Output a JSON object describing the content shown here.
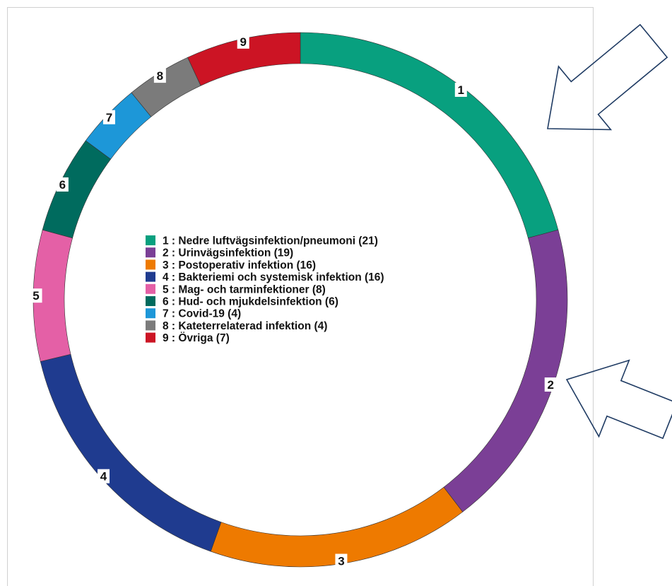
{
  "chart_data": {
    "type": "pie",
    "title": "",
    "donut": true,
    "start_angle_deg": 0,
    "direction": "clockwise",
    "slices": [
      {
        "label": "1",
        "legend": "1 : Nedre luftvägsinfektion/pneumoni (21)",
        "value": 21,
        "color": "#08a07f"
      },
      {
        "label": "2",
        "legend": "2 : Urinvägsinfektion (19)",
        "value": 19,
        "color": "#7b3f96"
      },
      {
        "label": "3",
        "legend": "3 : Postoperativ infektion (16)",
        "value": 16,
        "color": "#ee7a00"
      },
      {
        "label": "4",
        "legend": "4 : Bakteriemi och systemisk infektion (16)",
        "value": 16,
        "color": "#1f3b8f"
      },
      {
        "label": "5",
        "legend": "5 : Mag- och tarminfektioner (8)",
        "value": 8,
        "color": "#e460a6"
      },
      {
        "label": "6",
        "legend": "6 : Hud- och mjukdelsinfektion (6)",
        "value": 6,
        "color": "#006b5e"
      },
      {
        "label": "7",
        "legend": "7 : Covid-19 (4)",
        "value": 4,
        "color": "#1d97d8"
      },
      {
        "label": "8",
        "legend": "8 : Kateterrelaterad infektion (4)",
        "value": 4,
        "color": "#7b7b7b"
      },
      {
        "label": "9",
        "legend": "9 : Övriga (7)",
        "value": 7,
        "color": "#cc1424"
      }
    ],
    "legend_placement": "center"
  },
  "annotations": {
    "arrows": [
      {
        "name": "arrow-pointing-slice-1",
        "points_to": "1",
        "color": "#1f3b63"
      },
      {
        "name": "arrow-pointing-slice-2",
        "points_to": "2",
        "color": "#1f3b63"
      }
    ]
  }
}
